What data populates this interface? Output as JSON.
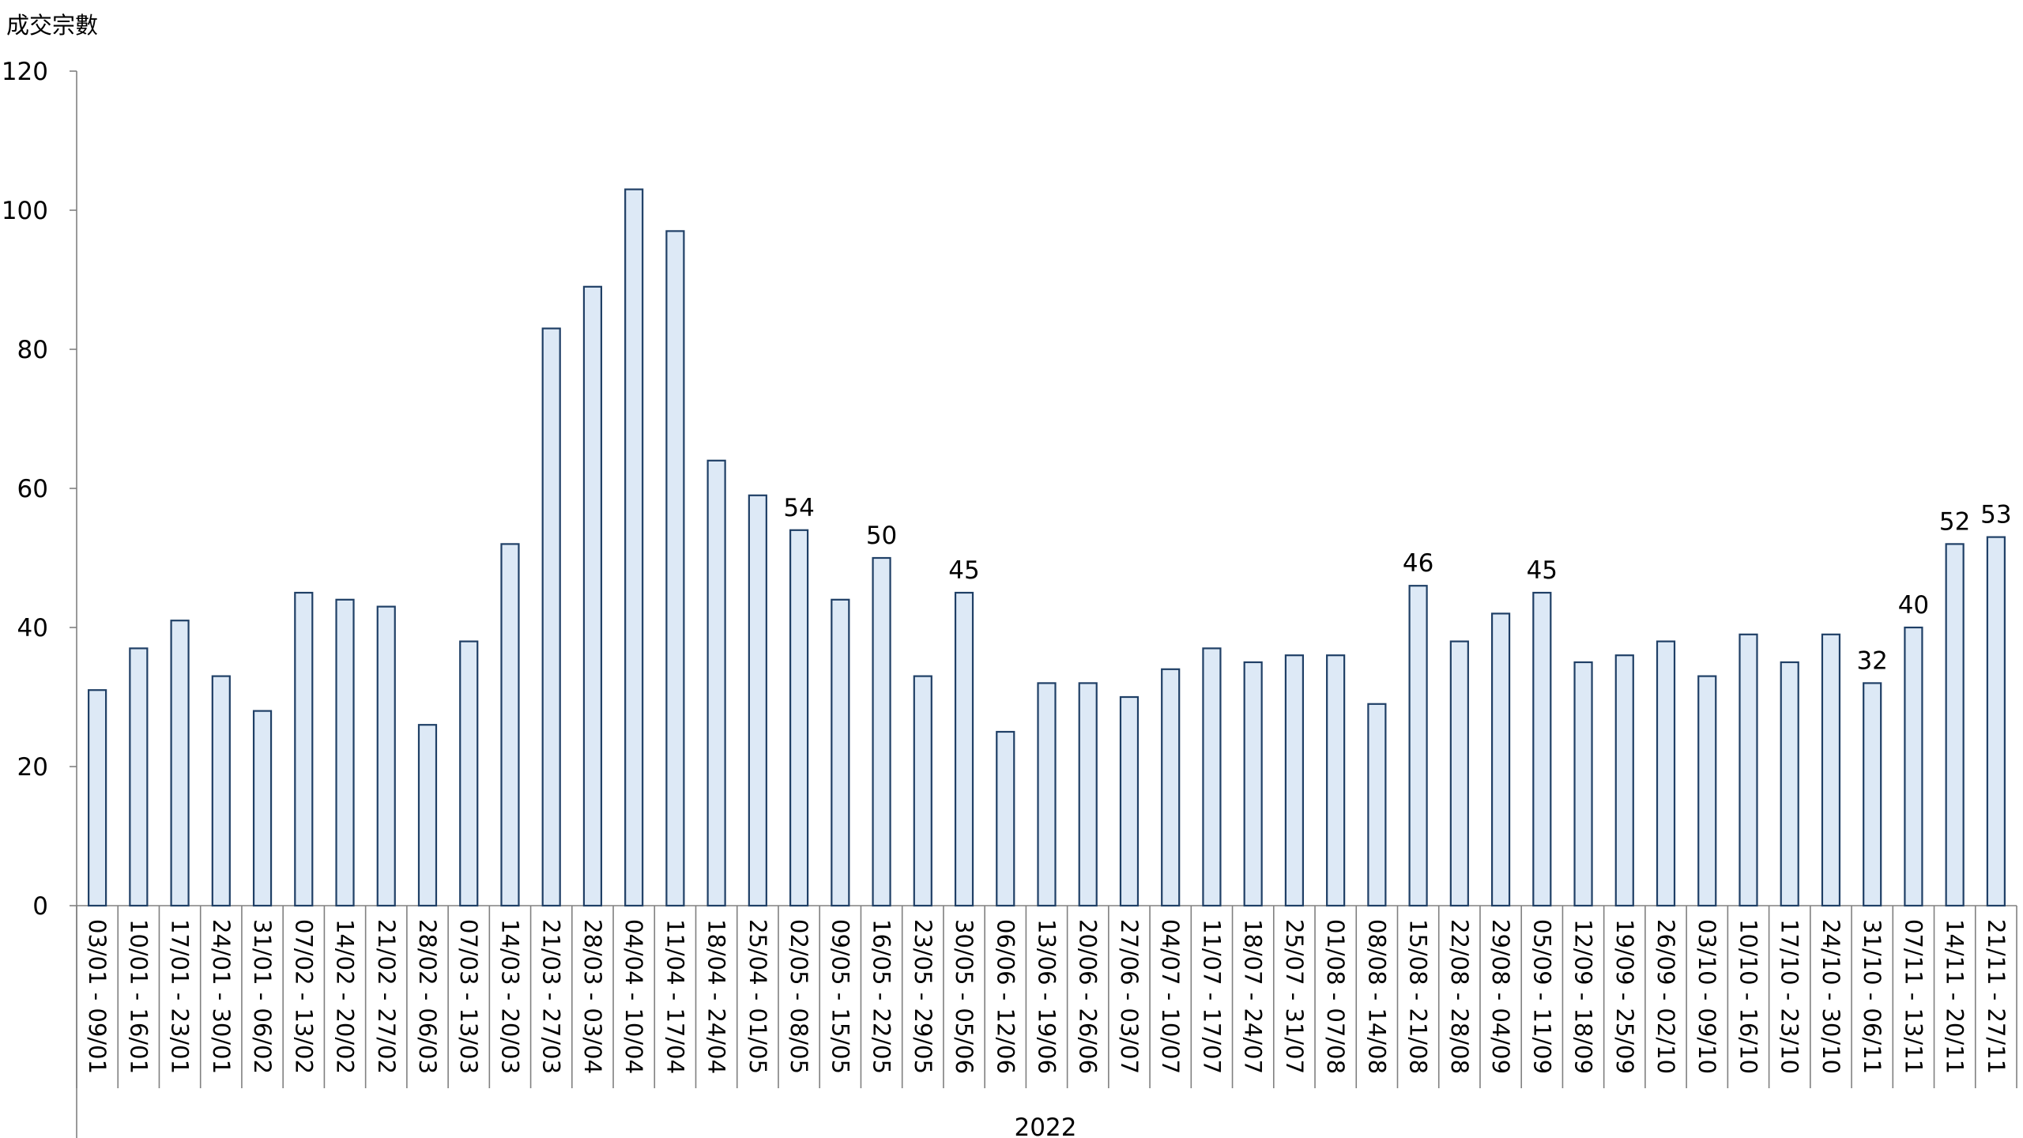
{
  "chart_data": {
    "type": "bar",
    "ylabel": "成交宗數",
    "ylim": [
      0,
      120
    ],
    "yticks": [
      0,
      20,
      40,
      60,
      80,
      100,
      120
    ],
    "group_label": "2022",
    "categories": [
      "03/01 - 09/01",
      "10/01 - 16/01",
      "17/01 - 23/01",
      "24/01 - 30/01",
      "31/01 - 06/02",
      "07/02 - 13/02",
      "14/02 - 20/02",
      "21/02 - 27/02",
      "28/02 - 06/03",
      "07/03 - 13/03",
      "14/03 - 20/03",
      "21/03 - 27/03",
      "28/03 - 03/04",
      "04/04 - 10/04",
      "11/04 - 17/04",
      "18/04 - 24/04",
      "25/04 - 01/05",
      "02/05 - 08/05",
      "09/05 - 15/05",
      "16/05 - 22/05",
      "23/05 - 29/05",
      "30/05 - 05/06",
      "06/06 - 12/06",
      "13/06 - 19/06",
      "20/06 - 26/06",
      "27/06 - 03/07",
      "04/07 - 10/07",
      "11/07 - 17/07",
      "18/07 - 24/07",
      "25/07 - 31/07",
      "01/08 - 07/08",
      "08/08 - 14/08",
      "15/08 - 21/08",
      "22/08 - 28/08",
      "29/08 - 04/09",
      "05/09 - 11/09",
      "12/09 - 18/09",
      "19/09 - 25/09",
      "26/09 - 02/10",
      "03/10 - 09/10",
      "10/10 - 16/10",
      "17/10 - 23/10",
      "24/10 - 30/10",
      "31/10 - 06/11",
      "07/11 - 13/11",
      "14/11 - 20/11",
      "21/11 - 27/11"
    ],
    "values": [
      31,
      37,
      41,
      33,
      28,
      45,
      44,
      43,
      26,
      38,
      52,
      83,
      89,
      103,
      97,
      64,
      59,
      54,
      44,
      50,
      33,
      45,
      25,
      32,
      32,
      30,
      34,
      37,
      35,
      36,
      36,
      29,
      46,
      38,
      42,
      45,
      35,
      36,
      38,
      33,
      39,
      35,
      39,
      32,
      40,
      52,
      53
    ],
    "data_labels": [
      {
        "index": 17,
        "text": "54"
      },
      {
        "index": 19,
        "text": "50"
      },
      {
        "index": 21,
        "text": "45"
      },
      {
        "index": 32,
        "text": "46"
      },
      {
        "index": 35,
        "text": "45"
      },
      {
        "index": 43,
        "text": "32"
      },
      {
        "index": 44,
        "text": "40"
      },
      {
        "index": 45,
        "text": "52"
      },
      {
        "index": 46,
        "text": "53"
      }
    ],
    "grid": false,
    "colors": {
      "bar_fill": "#dde9f6",
      "bar_stroke": "#1f3f66",
      "axis": "#808080"
    }
  }
}
